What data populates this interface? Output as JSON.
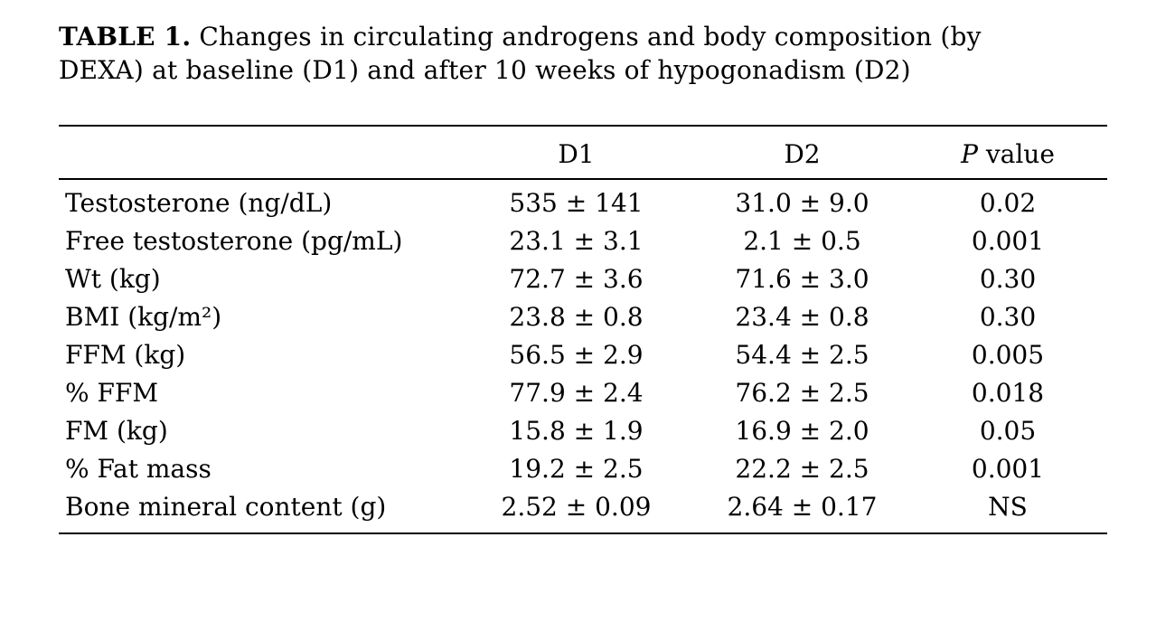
{
  "caption": {
    "label": "TABLE 1.",
    "text": "Changes in circulating androgens and body composition (by DEXA) at baseline (D1) and after 10 weeks of hypogonadism (D2)"
  },
  "table": {
    "header": {
      "label_col": "",
      "d1": "D1",
      "d2": "D2",
      "p_italic": "P",
      "p_rest": "value"
    },
    "rows": [
      {
        "label": "Testosterone (ng/dL)",
        "d1": "535 ± 141",
        "d2": "31.0 ± 9.0",
        "p": "0.02"
      },
      {
        "label": "Free testosterone (pg/mL)",
        "d1": "23.1 ± 3.1",
        "d2": "2.1 ± 0.5",
        "p": "0.001"
      },
      {
        "label": "Wt (kg)",
        "d1": "72.7 ± 3.6",
        "d2": "71.6 ± 3.0",
        "p": "0.30"
      },
      {
        "label": "BMI (kg/m²)",
        "d1": "23.8 ± 0.8",
        "d2": "23.4 ± 0.8",
        "p": "0.30"
      },
      {
        "label": "FFM (kg)",
        "d1": "56.5 ± 2.9",
        "d2": "54.4 ± 2.5",
        "p": "0.005"
      },
      {
        "label": "% FFM",
        "d1": "77.9 ± 2.4",
        "d2": "76.2 ± 2.5",
        "p": "0.018"
      },
      {
        "label": "FM (kg)",
        "d1": "15.8 ± 1.9",
        "d2": "16.9 ± 2.0",
        "p": "0.05"
      },
      {
        "label": "% Fat mass",
        "d1": "19.2 ± 2.5",
        "d2": "22.2 ± 2.5",
        "p": "0.001"
      },
      {
        "label": "Bone mineral content (g)",
        "d1": "2.52 ± 0.09",
        "d2": "2.64 ± 0.17",
        "p": "NS"
      }
    ]
  }
}
